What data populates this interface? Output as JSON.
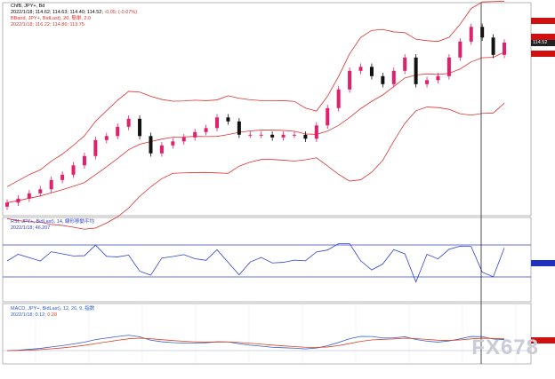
{
  "main_legend": {
    "line1": "ChfB, JPY+, Bd",
    "line2": "2022/1/18; 114.62; 114.63; 114.40; 114.52;",
    "line2_change": "-0.05; (-0.07%)",
    "line3": "BBand, JPY+, BidLast), 20, 簡単, 2.0",
    "line4": "2022/1/18; 116.22; 114.86; 113.75"
  },
  "rsi_legend": {
    "line1": "RSI, JPY+, BidLast), 14, 線形移動平均",
    "line2": "2022/1/18; 46.207"
  },
  "macd_legend": {
    "line1": "MACD, JPY+, BidLast), 12, 26, 9, 指数",
    "line2": "2022/1/18; 0.12;",
    "line2_signal": "0.28"
  },
  "price_tag": "114.52",
  "watermark": "FX678",
  "colors": {
    "up": "#e0206a",
    "down": "#111111",
    "band": "#e03030",
    "rsi": "#3040d0",
    "macd": "#3060d0",
    "signal": "#e04020",
    "grid": "#e8ecf4"
  },
  "chart_data": {
    "type": "candlestick",
    "series_close": [
      102.5,
      102.8,
      103.2,
      103.5,
      104.2,
      104.6,
      105.3,
      106.0,
      107.2,
      107.5,
      108.2,
      108.8,
      107.5,
      106.2,
      106.8,
      107.1,
      107.4,
      107.8,
      108.1,
      108.9,
      108.6,
      107.6,
      107.6,
      107.6,
      107.4,
      107.6,
      107.6,
      107.3,
      108.3,
      109.6,
      111.0,
      112.4,
      112.7,
      112.0,
      111.4,
      112.4,
      113.4,
      111.4,
      111.7,
      112.0,
      113.4,
      114.6,
      115.7,
      114.9,
      113.6,
      114.52
    ],
    "bbands": {
      "period": 20,
      "deviation": 2.0,
      "upper": 116.22,
      "middle": 114.86,
      "lower": 113.75
    },
    "rsi": {
      "period": 14,
      "last": 46.207,
      "levels": [
        70,
        30
      ]
    },
    "macd": {
      "fast": 12,
      "slow": 26,
      "signal": 9,
      "last_macd": 0.12,
      "last_signal": 0.28
    }
  }
}
